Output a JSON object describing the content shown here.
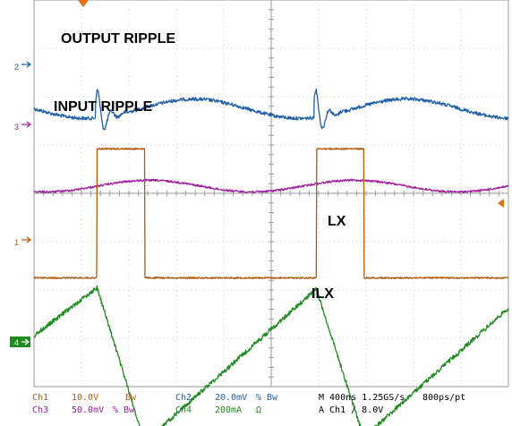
{
  "chart_data": {
    "type": "line",
    "title": "",
    "xlabel": "",
    "ylabel": "",
    "grid": true,
    "divisions": {
      "x": 10,
      "y": 8
    },
    "time_per_div_ns": 400,
    "sample_rate": "1.25GS/s",
    "annotations": [
      "OUTPUT RIPPLE",
      "INPUT RIPPLE",
      "LX",
      "ILX"
    ],
    "channel_markers": [
      "2",
      "3",
      "1",
      "4"
    ],
    "series": [
      {
        "channel": "Ch2",
        "scale": "20.0mV",
        "coupling": "ac",
        "color": "#1f5fa8",
        "ground_div": 2.25,
        "amplitude_div": 0.55,
        "shape": "ripple-with-spikes",
        "spike_times_div": [
          1.35,
          5.95,
          10.45
        ]
      },
      {
        "channel": "Ch3",
        "scale": "50.0mV",
        "coupling": "ac",
        "color": "#a020a0",
        "ground_div": 3.85,
        "amplitude_div": 0.12,
        "shape": "slow-wave"
      },
      {
        "channel": "Ch1",
        "scale": "10.0V",
        "coupling": "dc",
        "color": "#b05a10",
        "ground_div": 5.75,
        "high_div": 3.08,
        "shape": "pulse",
        "pulses_div": [
          [
            1.33,
            2.33
          ],
          [
            5.95,
            6.95
          ],
          [
            10.45,
            11.45
          ]
        ],
        "trigger_level": "8.0V"
      },
      {
        "channel": "Ch4",
        "scale": "200mA",
        "coupling": "dc",
        "color": "#1f8a1f",
        "ground_div": 8.0,
        "shape": "triangle",
        "peaks_div": [
          [
            0.0,
            6.95
          ],
          [
            1.33,
            5.95
          ],
          [
            2.33,
            9.15
          ],
          [
            5.95,
            5.98
          ],
          [
            6.95,
            9.05
          ],
          [
            10.45,
            5.98
          ],
          [
            11.45,
            9.05
          ],
          [
            14.0,
            6.45
          ]
        ]
      }
    ]
  },
  "status_bar": {
    "ch1_label": "Ch1",
    "ch1_scale": "10.0V",
    "ch1_bw": "Bw",
    "ch2_label": "Ch2",
    "ch2_scale": "20.0mV",
    "ch2_sym": "%",
    "ch2_bw": "Bw",
    "ch3_label": "Ch3",
    "ch3_scale": "50.0mV",
    "ch3_sym": "%",
    "ch3_bw": "Bw",
    "ch4_label": "Ch4",
    "ch4_scale": "200mA",
    "ch4_sym": "Ω",
    "timebase": "M 400ns 1.25GS/s",
    "record": "800ps/pt",
    "trigger": "A  Ch1  ∕  8.0V"
  },
  "colors": {
    "ch1": "#b05a10",
    "ch2": "#1f5fa8",
    "ch3": "#a020a0",
    "ch4": "#1f8a1f",
    "grid": "#bdbdbd",
    "marker_orange": "#e07010"
  }
}
